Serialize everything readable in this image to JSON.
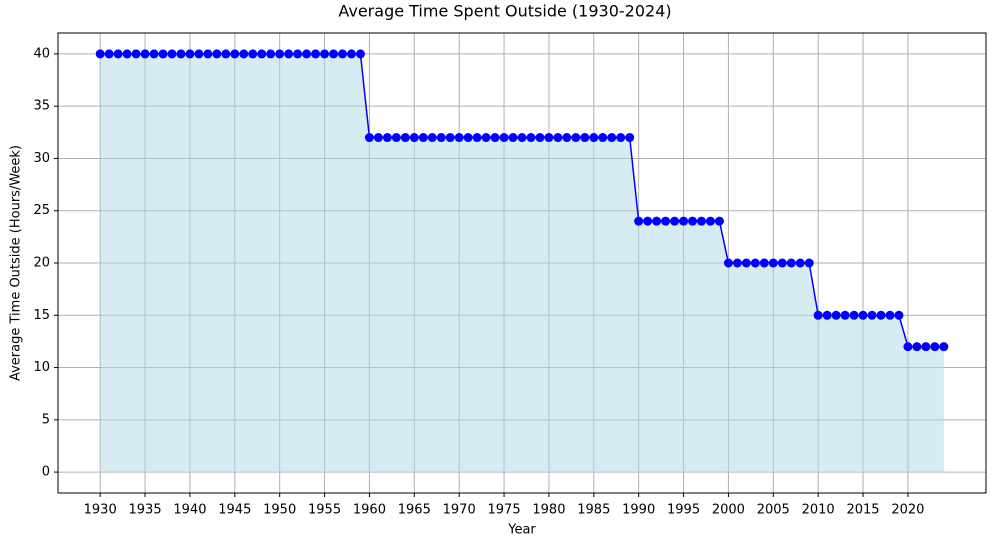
{
  "chart_data": {
    "type": "line",
    "title": "Average Time Spent Outside (1930-2024)",
    "x_label": "Year",
    "y_label": "Average Time Outside (Hours/Week)",
    "x": [
      1930,
      1931,
      1932,
      1933,
      1934,
      1935,
      1936,
      1937,
      1938,
      1939,
      1940,
      1941,
      1942,
      1943,
      1944,
      1945,
      1946,
      1947,
      1948,
      1949,
      1950,
      1951,
      1952,
      1953,
      1954,
      1955,
      1956,
      1957,
      1958,
      1959,
      1960,
      1961,
      1962,
      1963,
      1964,
      1965,
      1966,
      1967,
      1968,
      1969,
      1970,
      1971,
      1972,
      1973,
      1974,
      1975,
      1976,
      1977,
      1978,
      1979,
      1980,
      1981,
      1982,
      1983,
      1984,
      1985,
      1986,
      1987,
      1988,
      1989,
      1990,
      1991,
      1992,
      1993,
      1994,
      1995,
      1996,
      1997,
      1998,
      1999,
      2000,
      2001,
      2002,
      2003,
      2004,
      2005,
      2006,
      2007,
      2008,
      2009,
      2010,
      2011,
      2012,
      2013,
      2014,
      2015,
      2016,
      2017,
      2018,
      2019,
      2020,
      2021,
      2022,
      2023,
      2024
    ],
    "series": [
      {
        "name": "Average Time Outside",
        "color": "#0000ff",
        "fill_color": "#add8e6",
        "values": [
          40,
          40,
          40,
          40,
          40,
          40,
          40,
          40,
          40,
          40,
          40,
          40,
          40,
          40,
          40,
          40,
          40,
          40,
          40,
          40,
          40,
          40,
          40,
          40,
          40,
          40,
          40,
          40,
          40,
          40,
          32,
          32,
          32,
          32,
          32,
          32,
          32,
          32,
          32,
          32,
          32,
          32,
          32,
          32,
          32,
          32,
          32,
          32,
          32,
          32,
          32,
          32,
          32,
          32,
          32,
          32,
          32,
          32,
          32,
          32,
          24,
          24,
          24,
          24,
          24,
          24,
          24,
          24,
          24,
          24,
          20,
          20,
          20,
          20,
          20,
          20,
          20,
          20,
          20,
          20,
          15,
          15,
          15,
          15,
          15,
          15,
          15,
          15,
          15,
          15,
          12,
          12,
          12,
          12,
          12
        ]
      }
    ],
    "xlim": [
      1925.3,
      2028.7
    ],
    "xticks": [
      1930,
      1935,
      1940,
      1945,
      1950,
      1955,
      1960,
      1965,
      1970,
      1975,
      1980,
      1985,
      1990,
      1995,
      2000,
      2005,
      2010,
      2015,
      2020
    ],
    "ylim": [
      -2,
      42
    ],
    "yticks": [
      0,
      5,
      10,
      15,
      20,
      25,
      30,
      35,
      40
    ],
    "grid": true
  }
}
